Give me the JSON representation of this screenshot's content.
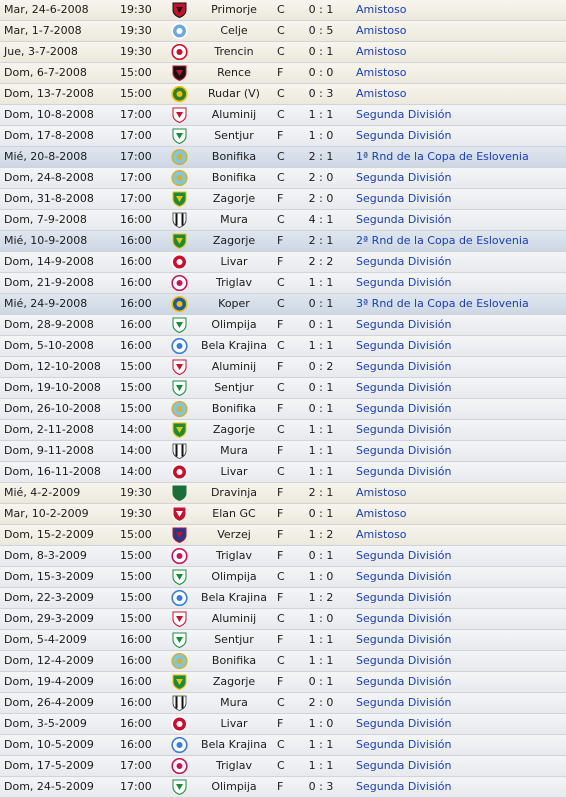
{
  "fixtures": [
    {
      "date": "Mar, 24-6-2008",
      "time": "19:30",
      "opponent": "Primorje",
      "venue": "C",
      "score": "0 : 1",
      "competition": "Amistoso",
      "kind": "amistoso",
      "crest": {
        "icon": "shield-icon",
        "primary": "#c8102e",
        "secondary": "#111111"
      }
    },
    {
      "date": "Mar, 1-7-2008",
      "time": "19:30",
      "opponent": "Celje",
      "venue": "C",
      "score": "0 : 5",
      "competition": "Amistoso",
      "kind": "amistoso",
      "crest": {
        "icon": "round-crest-icon",
        "primary": "#6fa8dc",
        "secondary": "#ffffff"
      }
    },
    {
      "date": "Jue, 3-7-2008",
      "time": "19:30",
      "opponent": "Trencin",
      "venue": "C",
      "score": "0 : 1",
      "competition": "Amistoso",
      "kind": "amistoso",
      "crest": {
        "icon": "round-crest-icon",
        "primary": "#ffffff",
        "secondary": "#c8102e"
      }
    },
    {
      "date": "Dom, 6-7-2008",
      "time": "15:00",
      "opponent": "Rence",
      "venue": "F",
      "score": "0 : 0",
      "competition": "Amistoso",
      "kind": "amistoso",
      "crest": {
        "icon": "shield-icon",
        "primary": "#111111",
        "secondary": "#c8102e"
      }
    },
    {
      "date": "Dom, 13-7-2008",
      "time": "15:00",
      "opponent": "Rudar (V)",
      "venue": "C",
      "score": "0 : 3",
      "competition": "Amistoso",
      "kind": "amistoso",
      "crest": {
        "icon": "round-crest-icon",
        "primary": "#2e7d32",
        "secondary": "#f2c300"
      }
    },
    {
      "date": "Dom, 10-8-2008",
      "time": "17:00",
      "opponent": "Aluminij",
      "venue": "C",
      "score": "1 : 1",
      "competition": "Segunda División",
      "kind": "liga",
      "crest": {
        "icon": "shield-icon",
        "primary": "#ffffff",
        "secondary": "#c8102e"
      }
    },
    {
      "date": "Dom, 17-8-2008",
      "time": "17:00",
      "opponent": "Sentjur",
      "venue": "F",
      "score": "1 : 0",
      "competition": "Segunda División",
      "kind": "liga",
      "crest": {
        "icon": "shield-icon",
        "primary": "#ffffff",
        "secondary": "#1b8a3a"
      }
    },
    {
      "date": "Mié, 20-8-2008",
      "time": "17:00",
      "opponent": "Bonifika",
      "venue": "C",
      "score": "2 : 1",
      "competition": "1ª Rnd de la Copa de Eslovenia",
      "kind": "copa",
      "crest": {
        "icon": "round-crest-icon",
        "primary": "#7ec8e3",
        "secondary": "#d4af37"
      }
    },
    {
      "date": "Dom, 24-8-2008",
      "time": "17:00",
      "opponent": "Bonifika",
      "venue": "C",
      "score": "2 : 0",
      "competition": "Segunda División",
      "kind": "liga",
      "crest": {
        "icon": "round-crest-icon",
        "primary": "#7ec8e3",
        "secondary": "#d4af37"
      }
    },
    {
      "date": "Dom, 31-8-2008",
      "time": "17:00",
      "opponent": "Zagorje",
      "venue": "F",
      "score": "2 : 0",
      "competition": "Segunda División",
      "kind": "liga",
      "crest": {
        "icon": "shield-icon",
        "primary": "#1b8a3a",
        "secondary": "#f2c300"
      }
    },
    {
      "date": "Dom, 7-9-2008",
      "time": "16:00",
      "opponent": "Mura",
      "venue": "C",
      "score": "4 : 1",
      "competition": "Segunda División",
      "kind": "liga",
      "crest": {
        "icon": "striped-shield-icon",
        "primary": "#111111",
        "secondary": "#ffffff"
      }
    },
    {
      "date": "Mié, 10-9-2008",
      "time": "16:00",
      "opponent": "Zagorje",
      "venue": "F",
      "score": "2 : 1",
      "competition": "2ª Rnd de la Copa de Eslovenia",
      "kind": "copa",
      "crest": {
        "icon": "shield-icon",
        "primary": "#1b8a3a",
        "secondary": "#f2c300"
      }
    },
    {
      "date": "Dom, 14-9-2008",
      "time": "16:00",
      "opponent": "Livar",
      "venue": "F",
      "score": "2 : 2",
      "competition": "Segunda División",
      "kind": "liga",
      "crest": {
        "icon": "round-crest-icon",
        "primary": "#c8102e",
        "secondary": "#ffffff"
      }
    },
    {
      "date": "Dom, 21-9-2008",
      "time": "16:00",
      "opponent": "Triglav",
      "venue": "C",
      "score": "1 : 1",
      "competition": "Segunda División",
      "kind": "liga",
      "crest": {
        "icon": "round-crest-icon",
        "primary": "#ffffff",
        "secondary": "#c2185b"
      }
    },
    {
      "date": "Mié, 24-9-2008",
      "time": "16:00",
      "opponent": "Koper",
      "venue": "C",
      "score": "0 : 1",
      "competition": "3ª Rnd de la Copa de Eslovenia",
      "kind": "copa",
      "crest": {
        "icon": "round-crest-icon",
        "primary": "#1e5aa8",
        "secondary": "#f2c300"
      }
    },
    {
      "date": "Dom, 28-9-2008",
      "time": "16:00",
      "opponent": "Olimpija",
      "venue": "F",
      "score": "0 : 1",
      "competition": "Segunda División",
      "kind": "liga",
      "crest": {
        "icon": "shield-icon",
        "primary": "#ffffff",
        "secondary": "#1b8a3a"
      }
    },
    {
      "date": "Dom, 5-10-2008",
      "time": "16:00",
      "opponent": "Bela Krajina",
      "venue": "C",
      "score": "1 : 1",
      "competition": "Segunda División",
      "kind": "liga",
      "crest": {
        "icon": "round-crest-icon",
        "primary": "#ffffff",
        "secondary": "#3a7bd5"
      }
    },
    {
      "date": "Dom, 12-10-2008",
      "time": "15:00",
      "opponent": "Aluminij",
      "venue": "F",
      "score": "0 : 2",
      "competition": "Segunda División",
      "kind": "liga",
      "crest": {
        "icon": "shield-icon",
        "primary": "#ffffff",
        "secondary": "#c8102e"
      }
    },
    {
      "date": "Dom, 19-10-2008",
      "time": "15:00",
      "opponent": "Sentjur",
      "venue": "C",
      "score": "0 : 1",
      "competition": "Segunda División",
      "kind": "liga",
      "crest": {
        "icon": "shield-icon",
        "primary": "#ffffff",
        "secondary": "#1b8a3a"
      }
    },
    {
      "date": "Dom, 26-10-2008",
      "time": "15:00",
      "opponent": "Bonifika",
      "venue": "F",
      "score": "0 : 1",
      "competition": "Segunda División",
      "kind": "liga",
      "crest": {
        "icon": "round-crest-icon",
        "primary": "#7ec8e3",
        "secondary": "#d4af37"
      }
    },
    {
      "date": "Dom, 2-11-2008",
      "time": "14:00",
      "opponent": "Zagorje",
      "venue": "C",
      "score": "1 : 1",
      "competition": "Segunda División",
      "kind": "liga",
      "crest": {
        "icon": "shield-icon",
        "primary": "#1b8a3a",
        "secondary": "#f2c300"
      }
    },
    {
      "date": "Dom, 9-11-2008",
      "time": "14:00",
      "opponent": "Mura",
      "venue": "F",
      "score": "1 : 1",
      "competition": "Segunda División",
      "kind": "liga",
      "crest": {
        "icon": "striped-shield-icon",
        "primary": "#111111",
        "secondary": "#ffffff"
      }
    },
    {
      "date": "Dom, 16-11-2008",
      "time": "14:00",
      "opponent": "Livar",
      "venue": "C",
      "score": "1 : 1",
      "competition": "Segunda División",
      "kind": "liga",
      "crest": {
        "icon": "round-crest-icon",
        "primary": "#c8102e",
        "secondary": "#ffffff"
      }
    },
    {
      "date": "Mié, 4-2-2009",
      "time": "19:30",
      "opponent": "Dravinja",
      "venue": "F",
      "score": "2 : 1",
      "competition": "Amistoso",
      "kind": "amistoso",
      "crest": {
        "icon": "shield-icon",
        "primary": "#1b6e3a",
        "secondary": "#1b6e3a"
      }
    },
    {
      "date": "Mar, 10-2-2009",
      "time": "19:30",
      "opponent": "Elan GC",
      "venue": "F",
      "score": "0 : 1",
      "competition": "Amistoso",
      "kind": "amistoso",
      "crest": {
        "icon": "shield-icon",
        "primary": "#c8102e",
        "secondary": "#ffffff"
      }
    },
    {
      "date": "Dom, 15-2-2009",
      "time": "15:00",
      "opponent": "Verzej",
      "venue": "F",
      "score": "1 : 2",
      "competition": "Amistoso",
      "kind": "amistoso",
      "crest": {
        "icon": "shield-icon",
        "primary": "#1e3a8a",
        "secondary": "#c8102e"
      }
    },
    {
      "date": "Dom, 8-3-2009",
      "time": "15:00",
      "opponent": "Triglav",
      "venue": "F",
      "score": "0 : 1",
      "competition": "Segunda División",
      "kind": "liga",
      "crest": {
        "icon": "round-crest-icon",
        "primary": "#ffffff",
        "secondary": "#c2185b"
      }
    },
    {
      "date": "Dom, 15-3-2009",
      "time": "15:00",
      "opponent": "Olimpija",
      "venue": "C",
      "score": "1 : 0",
      "competition": "Segunda División",
      "kind": "liga",
      "crest": {
        "icon": "shield-icon",
        "primary": "#ffffff",
        "secondary": "#1b8a3a"
      }
    },
    {
      "date": "Dom, 22-3-2009",
      "time": "15:00",
      "opponent": "Bela Krajina",
      "venue": "F",
      "score": "1 : 2",
      "competition": "Segunda División",
      "kind": "liga",
      "crest": {
        "icon": "round-crest-icon",
        "primary": "#ffffff",
        "secondary": "#3a7bd5"
      }
    },
    {
      "date": "Dom, 29-3-2009",
      "time": "15:00",
      "opponent": "Aluminij",
      "venue": "C",
      "score": "1 : 0",
      "competition": "Segunda División",
      "kind": "liga",
      "crest": {
        "icon": "shield-icon",
        "primary": "#ffffff",
        "secondary": "#c8102e"
      }
    },
    {
      "date": "Dom, 5-4-2009",
      "time": "16:00",
      "opponent": "Sentjur",
      "venue": "F",
      "score": "1 : 1",
      "competition": "Segunda División",
      "kind": "liga",
      "crest": {
        "icon": "shield-icon",
        "primary": "#ffffff",
        "secondary": "#1b8a3a"
      }
    },
    {
      "date": "Dom, 12-4-2009",
      "time": "16:00",
      "opponent": "Bonifika",
      "venue": "C",
      "score": "1 : 1",
      "competition": "Segunda División",
      "kind": "liga",
      "crest": {
        "icon": "round-crest-icon",
        "primary": "#7ec8e3",
        "secondary": "#d4af37"
      }
    },
    {
      "date": "Dom, 19-4-2009",
      "time": "16:00",
      "opponent": "Zagorje",
      "venue": "F",
      "score": "0 : 1",
      "competition": "Segunda División",
      "kind": "liga",
      "crest": {
        "icon": "shield-icon",
        "primary": "#1b8a3a",
        "secondary": "#f2c300"
      }
    },
    {
      "date": "Dom, 26-4-2009",
      "time": "16:00",
      "opponent": "Mura",
      "venue": "C",
      "score": "2 : 0",
      "competition": "Segunda División",
      "kind": "liga",
      "crest": {
        "icon": "striped-shield-icon",
        "primary": "#111111",
        "secondary": "#ffffff"
      }
    },
    {
      "date": "Dom, 3-5-2009",
      "time": "16:00",
      "opponent": "Livar",
      "venue": "F",
      "score": "1 : 0",
      "competition": "Segunda División",
      "kind": "liga",
      "crest": {
        "icon": "round-crest-icon",
        "primary": "#c8102e",
        "secondary": "#ffffff"
      }
    },
    {
      "date": "Dom, 10-5-2009",
      "time": "16:00",
      "opponent": "Bela Krajina",
      "venue": "C",
      "score": "1 : 1",
      "competition": "Segunda División",
      "kind": "liga",
      "crest": {
        "icon": "round-crest-icon",
        "primary": "#ffffff",
        "secondary": "#3a7bd5"
      }
    },
    {
      "date": "Dom, 17-5-2009",
      "time": "17:00",
      "opponent": "Triglav",
      "venue": "C",
      "score": "1 : 1",
      "competition": "Segunda División",
      "kind": "liga",
      "crest": {
        "icon": "round-crest-icon",
        "primary": "#ffffff",
        "secondary": "#c2185b"
      }
    },
    {
      "date": "Dom, 24-5-2009",
      "time": "17:00",
      "opponent": "Olimpija",
      "venue": "F",
      "score": "0 : 3",
      "competition": "Segunda División",
      "kind": "liga",
      "crest": {
        "icon": "shield-icon",
        "primary": "#ffffff",
        "secondary": "#1b8a3a"
      }
    }
  ]
}
